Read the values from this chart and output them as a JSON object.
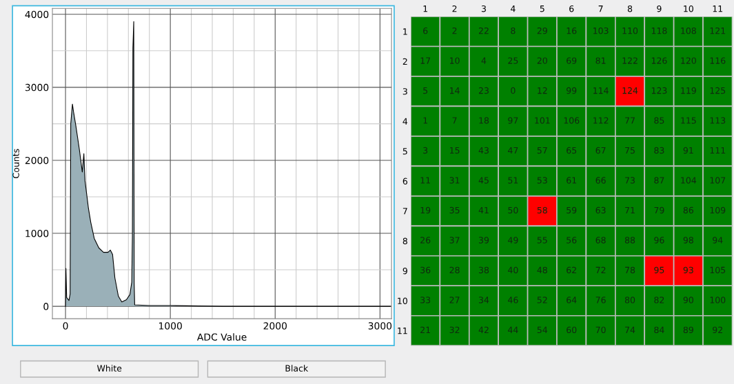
{
  "chart_data": [
    {
      "type": "area",
      "xlabel": "ADC Value",
      "ylabel": "Counts",
      "x": [
        0,
        4,
        11,
        33,
        44,
        50,
        66,
        77,
        99,
        132,
        160,
        175,
        186,
        219,
        241,
        274,
        318,
        362,
        406,
        428,
        449,
        471,
        504,
        537,
        581,
        614,
        632,
        638,
        643,
        651,
        655,
        660,
        800,
        1000,
        1500,
        2000,
        3100
      ],
      "series": [
        {
          "color": "#9ab0b8",
          "values": [
            0,
            520,
            120,
            80,
            170,
            2500,
            2770,
            2660,
            2470,
            2150,
            1840,
            2090,
            1720,
            1340,
            1150,
            930,
            800,
            740,
            740,
            770,
            710,
            390,
            140,
            60,
            90,
            160,
            330,
            960,
            3540,
            3900,
            330,
            20,
            10,
            10,
            0,
            0,
            0
          ]
        }
      ],
      "xlim": [
        -125,
        3110
      ],
      "ylim": [
        -170,
        4080
      ],
      "xticks": [
        0,
        {
          "value": 200,
          "label": null
        },
        {
          "value": 400,
          "label": null
        },
        {
          "value": 600,
          "label": null
        },
        {
          "value": 800,
          "label": null
        },
        1000,
        {
          "value": 1200,
          "label": null
        },
        {
          "value": 1400,
          "label": null
        },
        {
          "value": 1600,
          "label": null
        },
        {
          "value": 1800,
          "label": null
        },
        2000,
        {
          "value": 2200,
          "label": null
        },
        {
          "value": 2400,
          "label": null
        },
        {
          "value": 2600,
          "label": null
        },
        {
          "value": 2800,
          "label": null
        },
        3000
      ],
      "yticks": [
        0,
        {
          "value": 500,
          "label": null
        },
        1000,
        {
          "value": 1500,
          "label": null
        },
        2000,
        {
          "value": 2500,
          "label": null
        },
        3000,
        {
          "value": 3500,
          "label": null
        },
        4000
      ],
      "grid": true,
      "annotations": [
        "White",
        "Black"
      ]
    },
    {
      "type": "heatmap",
      "categories": [
        "1",
        "2",
        "3",
        "4",
        "5",
        "6",
        "7",
        "8",
        "9",
        "10",
        "11"
      ],
      "y_categories": [
        "1",
        "2",
        "3",
        "4",
        "5",
        "6",
        "7",
        "8",
        "9",
        "10",
        "11"
      ],
      "colors": [
        [
          "#008000",
          "#008000",
          "#008000",
          "#008000",
          "#008000",
          "#008000",
          "#008000",
          "#008000",
          "#008000",
          "#008000",
          "#008000"
        ],
        [
          "#008000",
          "#008000",
          "#008000",
          "#008000",
          "#008000",
          "#008000",
          "#008000",
          "#008000",
          "#008000",
          "#008000",
          "#008000"
        ],
        [
          "#008000",
          "#008000",
          "#008000",
          "#008000",
          "#008000",
          "#008000",
          "#008000",
          "#ff0000",
          "#008000",
          "#008000",
          "#008000"
        ],
        [
          "#008000",
          "#008000",
          "#008000",
          "#008000",
          "#008000",
          "#008000",
          "#008000",
          "#008000",
          "#008000",
          "#008000",
          "#008000"
        ],
        [
          "#008000",
          "#008000",
          "#008000",
          "#008000",
          "#008000",
          "#008000",
          "#008000",
          "#008000",
          "#008000",
          "#008000",
          "#008000"
        ],
        [
          "#008000",
          "#008000",
          "#008000",
          "#008000",
          "#008000",
          "#008000",
          "#008000",
          "#008000",
          "#008000",
          "#008000",
          "#008000"
        ],
        [
          "#008000",
          "#008000",
          "#008000",
          "#008000",
          "#ff0000",
          "#008000",
          "#008000",
          "#008000",
          "#008000",
          "#008000",
          "#008000"
        ],
        [
          "#008000",
          "#008000",
          "#008000",
          "#008000",
          "#008000",
          "#008000",
          "#008000",
          "#008000",
          "#008000",
          "#008000",
          "#008000"
        ],
        [
          "#008000",
          "#008000",
          "#008000",
          "#008000",
          "#008000",
          "#008000",
          "#008000",
          "#008000",
          "#ff0000",
          "#ff0000",
          "#008000"
        ],
        [
          "#008000",
          "#008000",
          "#008000",
          "#008000",
          "#008000",
          "#008000",
          "#008000",
          "#008000",
          "#008000",
          "#008000",
          "#008000"
        ],
        [
          "#008000",
          "#008000",
          "#008000",
          "#008000",
          "#008000",
          "#008000",
          "#008000",
          "#008000",
          "#008000",
          "#008000",
          "#008000"
        ]
      ],
      "data_labels": true,
      "cells": [
        [
          6,
          2,
          22,
          8,
          29,
          16,
          103,
          110,
          118,
          108,
          121
        ],
        [
          17,
          10,
          4,
          25,
          20,
          69,
          81,
          122,
          126,
          120,
          116
        ],
        [
          5,
          14,
          23,
          0,
          12,
          99,
          114,
          124,
          123,
          119,
          125
        ],
        [
          1,
          7,
          18,
          97,
          101,
          106,
          112,
          77,
          85,
          115,
          113
        ],
        [
          3,
          15,
          43,
          47,
          57,
          65,
          67,
          75,
          83,
          91,
          111
        ],
        [
          11,
          31,
          45,
          51,
          53,
          61,
          66,
          73,
          87,
          104,
          107
        ],
        [
          19,
          35,
          41,
          50,
          58,
          59,
          63,
          71,
          79,
          86,
          109
        ],
        [
          26,
          37,
          39,
          49,
          55,
          56,
          68,
          88,
          96,
          98,
          94
        ],
        [
          36,
          28,
          38,
          40,
          48,
          62,
          72,
          78,
          95,
          93,
          105
        ],
        [
          33,
          27,
          34,
          46,
          52,
          64,
          76,
          80,
          82,
          90,
          100
        ],
        [
          21,
          32,
          42,
          44,
          54,
          60,
          70,
          74,
          84,
          89,
          92
        ]
      ]
    }
  ]
}
